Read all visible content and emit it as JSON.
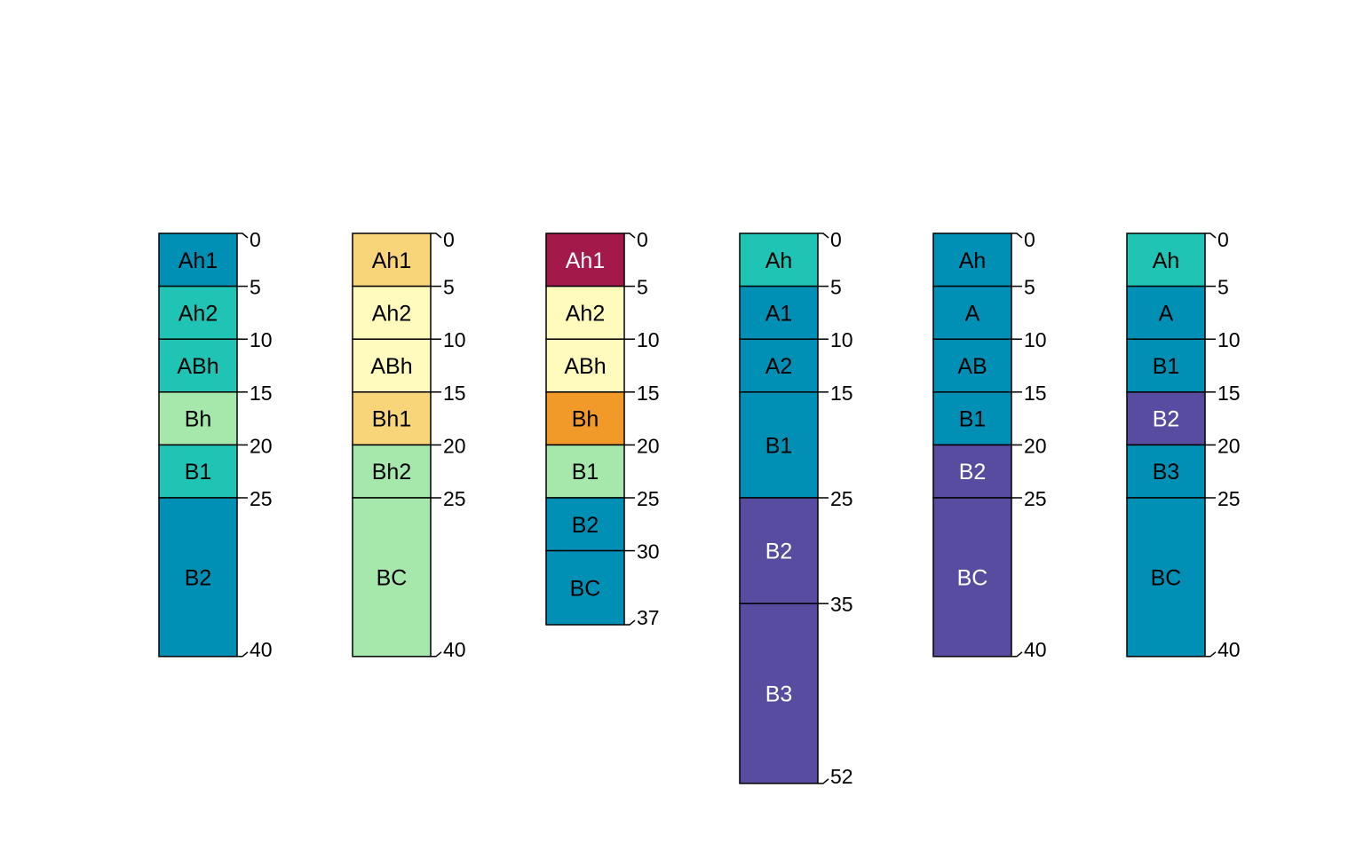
{
  "chart_data": {
    "type": "soil-profile",
    "depth_units": "",
    "profiles": [
      {
        "horizons": [
          {
            "name": "Ah1",
            "top": 0,
            "bottom": 5,
            "color": "#0090B5"
          },
          {
            "name": "Ah2",
            "top": 5,
            "bottom": 10,
            "color": "#20C4B4"
          },
          {
            "name": "ABh",
            "top": 10,
            "bottom": 15,
            "color": "#20C4B4"
          },
          {
            "name": "Bh",
            "top": 15,
            "bottom": 20,
            "color": "#A6E8AB"
          },
          {
            "name": "B1",
            "top": 20,
            "bottom": 25,
            "color": "#20C4B4"
          },
          {
            "name": "B2",
            "top": 25,
            "bottom": 40,
            "color": "#0090B5"
          }
        ],
        "ticks": [
          "0",
          "5",
          "10",
          "15",
          "20",
          "25",
          "40"
        ]
      },
      {
        "horizons": [
          {
            "name": "Ah1",
            "top": 0,
            "bottom": 5,
            "color": "#F9D57A"
          },
          {
            "name": "Ah2",
            "top": 5,
            "bottom": 10,
            "color": "#FFFBBD"
          },
          {
            "name": "ABh",
            "top": 10,
            "bottom": 15,
            "color": "#FFFBBD"
          },
          {
            "name": "Bh1",
            "top": 15,
            "bottom": 20,
            "color": "#F9D57A"
          },
          {
            "name": "Bh2",
            "top": 20,
            "bottom": 25,
            "color": "#A6E8AB"
          },
          {
            "name": "BC",
            "top": 25,
            "bottom": 40,
            "color": "#A6E8AB"
          }
        ],
        "ticks": [
          "0",
          "5",
          "10",
          "15",
          "20",
          "25",
          "40"
        ]
      },
      {
        "horizons": [
          {
            "name": "Ah1",
            "top": 0,
            "bottom": 5,
            "color": "#A3194A"
          },
          {
            "name": "Ah2",
            "top": 5,
            "bottom": 10,
            "color": "#FFFBBD"
          },
          {
            "name": "ABh",
            "top": 10,
            "bottom": 15,
            "color": "#FFFBBD"
          },
          {
            "name": "Bh",
            "top": 15,
            "bottom": 20,
            "color": "#F19A2A"
          },
          {
            "name": "B1",
            "top": 20,
            "bottom": 25,
            "color": "#A6E8AB"
          },
          {
            "name": "B2",
            "top": 25,
            "bottom": 30,
            "color": "#0090B5"
          },
          {
            "name": "BC",
            "top": 30,
            "bottom": 37,
            "color": "#0090B5"
          }
        ],
        "ticks": [
          "0",
          "5",
          "10",
          "15",
          "20",
          "25",
          "30",
          "37"
        ]
      },
      {
        "horizons": [
          {
            "name": "Ah",
            "top": 0,
            "bottom": 5,
            "color": "#20C4B4"
          },
          {
            "name": "A1",
            "top": 5,
            "bottom": 10,
            "color": "#0090B5"
          },
          {
            "name": "A2",
            "top": 10,
            "bottom": 15,
            "color": "#0090B5"
          },
          {
            "name": "B1",
            "top": 15,
            "bottom": 25,
            "color": "#0090B5"
          },
          {
            "name": "B2",
            "top": 25,
            "bottom": 35,
            "color": "#584CA0"
          },
          {
            "name": "B3",
            "top": 35,
            "bottom": 52,
            "color": "#584CA0"
          }
        ],
        "ticks": [
          "0",
          "5",
          "10",
          "15",
          "25",
          "35",
          "52"
        ]
      },
      {
        "horizons": [
          {
            "name": "Ah",
            "top": 0,
            "bottom": 5,
            "color": "#0090B5"
          },
          {
            "name": "A",
            "top": 5,
            "bottom": 10,
            "color": "#0090B5"
          },
          {
            "name": "AB",
            "top": 10,
            "bottom": 15,
            "color": "#0090B5"
          },
          {
            "name": "B1",
            "top": 15,
            "bottom": 20,
            "color": "#0090B5"
          },
          {
            "name": "B2",
            "top": 20,
            "bottom": 25,
            "color": "#584CA0"
          },
          {
            "name": "BC",
            "top": 25,
            "bottom": 40,
            "color": "#584CA0"
          }
        ],
        "ticks": [
          "0",
          "5",
          "10",
          "15",
          "20",
          "25",
          "40"
        ]
      },
      {
        "horizons": [
          {
            "name": "Ah",
            "top": 0,
            "bottom": 5,
            "color": "#20C4B4"
          },
          {
            "name": "A",
            "top": 5,
            "bottom": 10,
            "color": "#0090B5"
          },
          {
            "name": "B1",
            "top": 10,
            "bottom": 15,
            "color": "#0090B5"
          },
          {
            "name": "B2",
            "top": 15,
            "bottom": 20,
            "color": "#584CA0"
          },
          {
            "name": "B3",
            "top": 20,
            "bottom": 25,
            "color": "#0090B5"
          },
          {
            "name": "BC",
            "top": 25,
            "bottom": 40,
            "color": "#0090B5"
          }
        ],
        "ticks": [
          "0",
          "5",
          "10",
          "15",
          "20",
          "25",
          "40"
        ]
      }
    ]
  }
}
